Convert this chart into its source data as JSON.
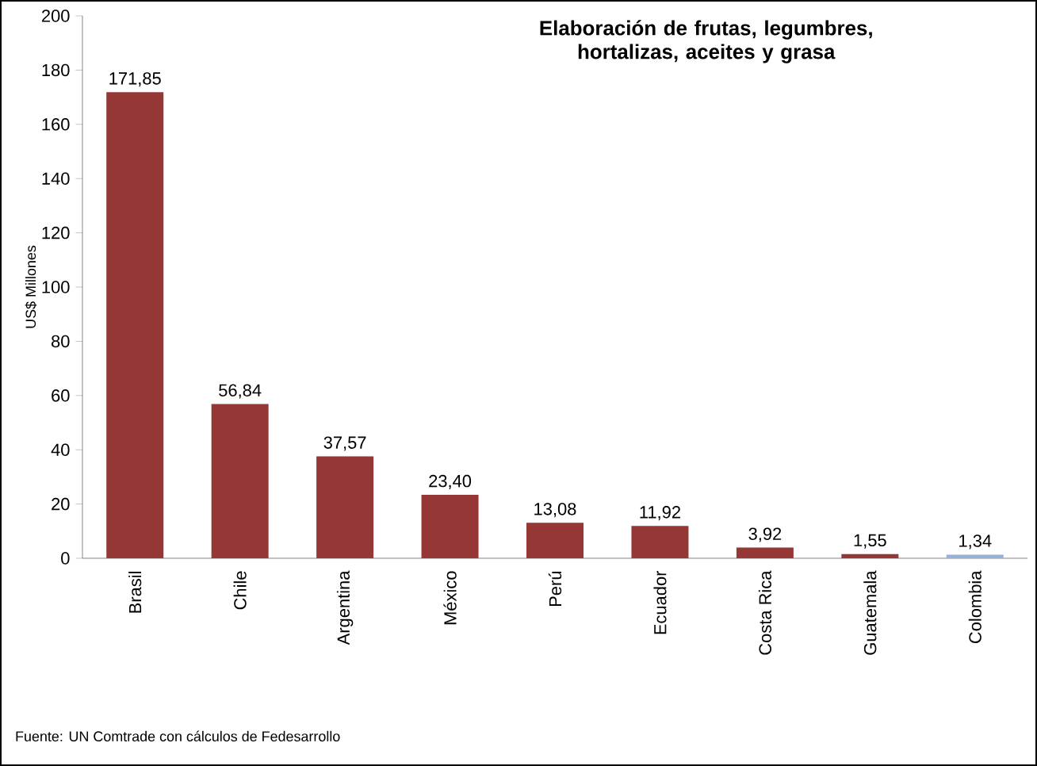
{
  "chart_data": {
    "type": "bar",
    "title": "Elaboración de frutas, legumbres, hortalizas, aceites y grasa",
    "ylabel": "US$ Millones",
    "categories": [
      "Brasil",
      "Chile",
      "Argentina",
      "México",
      "Perú",
      "Ecuador",
      "Costa Rica",
      "Guatemala",
      "Colombia"
    ],
    "values": [
      171.85,
      56.84,
      37.57,
      23.4,
      13.08,
      11.92,
      3.92,
      1.55,
      1.34
    ],
    "value_labels": [
      "171,85",
      "56,84",
      "37,57",
      "23,40",
      "13,08",
      "11,92",
      "3,92",
      "1,55",
      "1,34"
    ],
    "colors": [
      "#953735",
      "#953735",
      "#953735",
      "#953735",
      "#953735",
      "#953735",
      "#953735",
      "#953735",
      "#95b3d7"
    ],
    "ylim": [
      0,
      200
    ],
    "yticks": [
      0,
      20,
      40,
      60,
      80,
      100,
      120,
      140,
      160,
      180,
      200
    ],
    "annotations": [
      "Fuente: UN Comtrade con cálculos de Fedesarrollo"
    ]
  }
}
